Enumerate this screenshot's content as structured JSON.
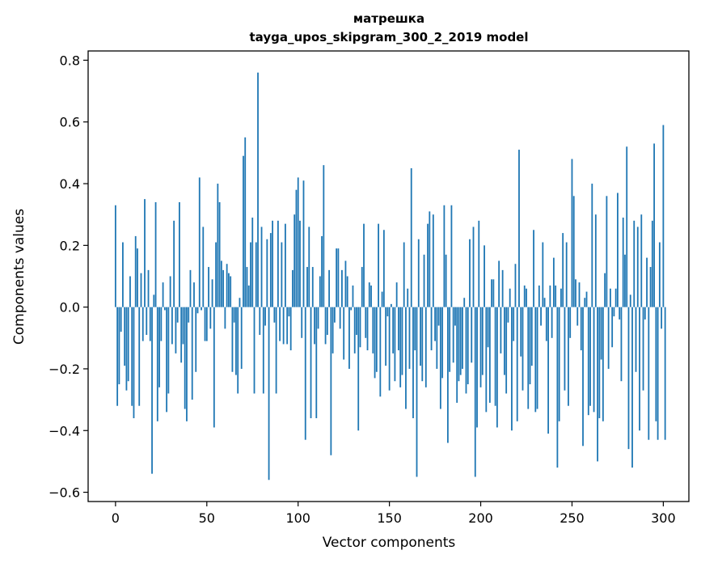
{
  "chart_data": {
    "type": "bar",
    "title_line1": "матрешка",
    "title_line2": "tayga_upos_skipgram_300_2_2019 model",
    "xlabel": "Vector components",
    "ylabel": "Components values",
    "xlim": [
      -15,
      314
    ],
    "ylim": [
      -0.63,
      0.83
    ],
    "xticks": [
      0,
      50,
      100,
      150,
      200,
      250,
      300
    ],
    "xtick_labels": [
      "0",
      "50",
      "100",
      "150",
      "200",
      "250",
      "300"
    ],
    "yticks": [
      -0.6,
      -0.4,
      -0.2,
      0.0,
      0.2,
      0.4,
      0.6,
      0.8
    ],
    "ytick_labels": [
      "−0.6",
      "−0.4",
      "−0.2",
      "0.0",
      "0.2",
      "0.4",
      "0.6",
      "0.8"
    ],
    "bar_color": "#1f77b4",
    "grid": false,
    "values": [
      0.33,
      -0.32,
      -0.25,
      -0.08,
      0.21,
      -0.19,
      -0.27,
      -0.24,
      0.1,
      -0.32,
      -0.36,
      0.23,
      0.19,
      -0.32,
      0.11,
      -0.11,
      0.35,
      -0.09,
      0.12,
      -0.11,
      -0.54,
      0.04,
      0.34,
      -0.37,
      -0.26,
      -0.11,
      0.08,
      -0.01,
      -0.34,
      -0.28,
      0.1,
      -0.12,
      0.28,
      -0.15,
      -0.05,
      0.34,
      -0.18,
      -0.12,
      -0.33,
      -0.37,
      -0.05,
      0.12,
      -0.3,
      0.08,
      -0.21,
      -0.02,
      0.42,
      -0.01,
      0.26,
      -0.11,
      -0.11,
      0.13,
      -0.07,
      0.09,
      -0.39,
      0.21,
      0.4,
      0.34,
      0.15,
      0.12,
      -0.07,
      0.14,
      0.11,
      0.1,
      -0.21,
      -0.05,
      -0.22,
      -0.28,
      0.03,
      -0.2,
      0.49,
      0.55,
      0.13,
      0.07,
      0.21,
      0.29,
      -0.28,
      0.21,
      0.76,
      -0.09,
      0.26,
      -0.28,
      -0.06,
      0.22,
      -0.56,
      0.24,
      0.28,
      -0.05,
      -0.28,
      0.28,
      -0.11,
      0.21,
      -0.12,
      0.27,
      -0.12,
      -0.03,
      -0.14,
      0.12,
      0.3,
      0.38,
      0.42,
      0.28,
      -0.1,
      0.41,
      -0.43,
      0.13,
      0.26,
      -0.36,
      0.13,
      -0.12,
      -0.36,
      -0.07,
      0.1,
      0.23,
      0.46,
      -0.12,
      -0.09,
      0.12,
      -0.48,
      -0.15,
      -0.05,
      0.19,
      0.19,
      -0.07,
      0.12,
      -0.17,
      0.15,
      0.1,
      -0.2,
      -0.01,
      0.07,
      -0.15,
      -0.09,
      -0.4,
      -0.13,
      0.13,
      0.27,
      -0.1,
      -0.14,
      0.08,
      0.07,
      -0.15,
      -0.23,
      -0.21,
      0.27,
      -0.29,
      0.05,
      0.25,
      -0.19,
      -0.03,
      -0.27,
      0.01,
      -0.15,
      -0.24,
      0.08,
      -0.14,
      -0.26,
      -0.22,
      0.21,
      -0.33,
      0.06,
      -0.2,
      0.45,
      -0.36,
      -0.14,
      -0.55,
      0.22,
      -0.19,
      -0.24,
      0.17,
      -0.26,
      0.27,
      0.31,
      -0.14,
      0.3,
      -0.11,
      -0.2,
      -0.06,
      -0.33,
      -0.23,
      0.33,
      0.17,
      -0.44,
      -0.21,
      0.33,
      -0.18,
      -0.06,
      -0.31,
      -0.24,
      -0.22,
      -0.2,
      0.03,
      -0.28,
      -0.25,
      0.22,
      -0.18,
      0.26,
      -0.55,
      -0.39,
      0.28,
      -0.26,
      -0.22,
      0.2,
      -0.34,
      -0.13,
      -0.31,
      0.09,
      0.09,
      -0.32,
      -0.39,
      0.15,
      -0.15,
      0.12,
      -0.22,
      -0.28,
      -0.05,
      0.06,
      -0.4,
      -0.11,
      0.14,
      -0.37,
      0.51,
      -0.16,
      -0.27,
      0.07,
      0.06,
      -0.33,
      -0.25,
      -0.19,
      0.25,
      -0.34,
      -0.33,
      0.07,
      -0.06,
      0.21,
      0.03,
      -0.11,
      -0.41,
      0.07,
      -0.1,
      0.16,
      0.07,
      -0.52,
      -0.37,
      0.06,
      0.24,
      -0.27,
      0.21,
      -0.32,
      -0.1,
      0.48,
      0.36,
      0.09,
      -0.06,
      0.08,
      -0.14,
      -0.45,
      0.03,
      0.05,
      -0.35,
      -0.32,
      0.4,
      -0.34,
      0.3,
      -0.5,
      -0.36,
      -0.17,
      -0.37,
      0.11,
      0.36,
      -0.2,
      0.06,
      -0.13,
      -0.03,
      0.06,
      0.37,
      -0.04,
      -0.24,
      0.29,
      0.17,
      0.52,
      -0.46,
      0.04,
      -0.52,
      0.28,
      -0.21,
      0.26,
      -0.4,
      0.3,
      -0.27,
      -0.04,
      0.16,
      -0.43,
      0.13,
      0.28,
      0.53,
      -0.37,
      -0.43,
      0.21,
      -0.07,
      0.59,
      -0.43
    ]
  }
}
